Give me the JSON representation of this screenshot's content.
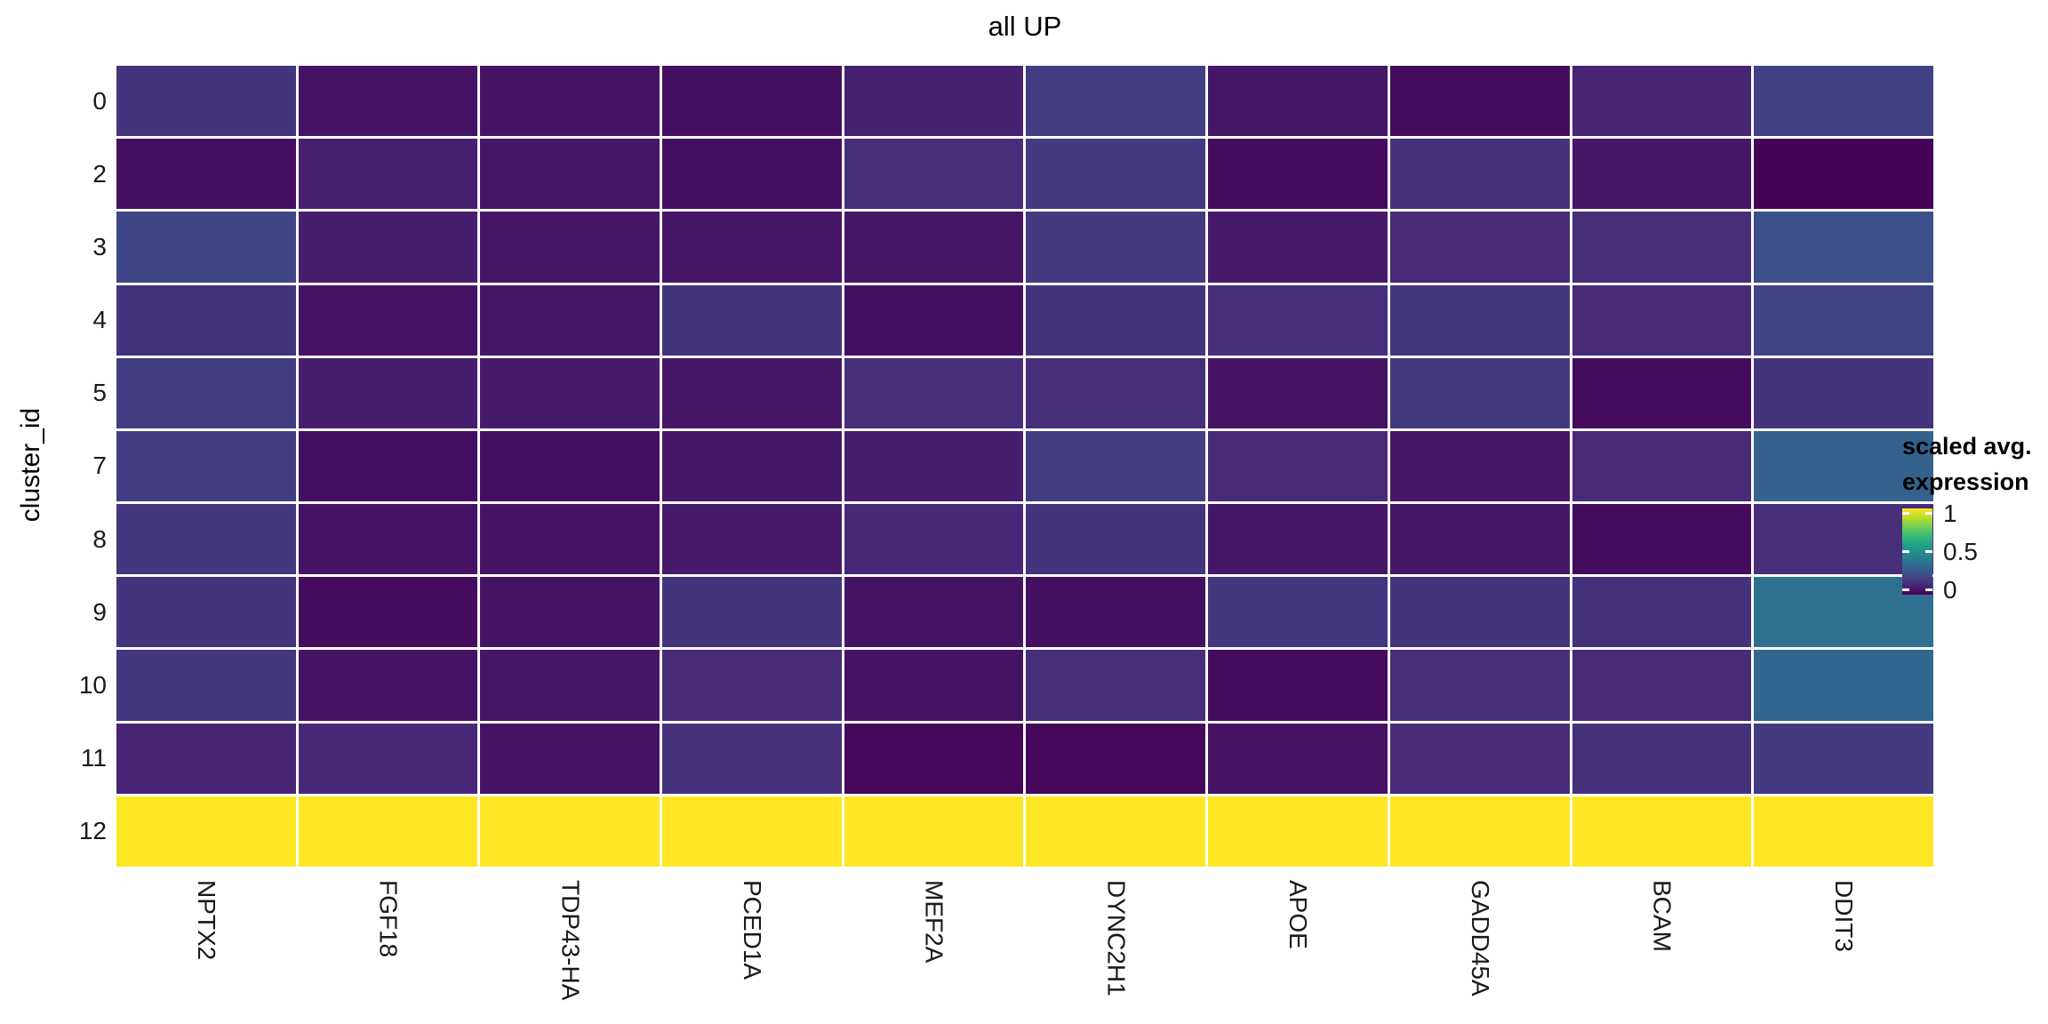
{
  "title": "all UP",
  "y_axis": {
    "label": "cluster_id",
    "ticks": [
      "0",
      "2",
      "3",
      "4",
      "5",
      "7",
      "8",
      "9",
      "10",
      "11",
      "12"
    ]
  },
  "x_axis": {
    "ticks": [
      "NPTX2",
      "FGF18",
      "TDP43-HA",
      "PCED1A",
      "MEF2A",
      "DYNC2H1",
      "APOE",
      "GADD45A",
      "BCAM",
      "DDIT3"
    ]
  },
  "legend": {
    "title_line1": "scaled avg.",
    "title_line2": "expression",
    "ticks": [
      "1",
      "0.5",
      "0"
    ],
    "tick_values": [
      1,
      0.5,
      0
    ]
  },
  "chart_data": {
    "type": "heatmap",
    "title": "all UP",
    "ylabel": "cluster_id",
    "xlabel": "",
    "categories_x": [
      "NPTX2",
      "FGF18",
      "TDP43-HA",
      "PCED1A",
      "MEF2A",
      "DYNC2H1",
      "APOE",
      "GADD45A",
      "BCAM",
      "DDIT3"
    ],
    "categories_y": [
      "0",
      "2",
      "3",
      "4",
      "5",
      "7",
      "8",
      "9",
      "10",
      "11",
      "12"
    ],
    "value_name": "scaled avg. expression",
    "value_range": [
      0,
      1
    ],
    "colormap": "viridis",
    "colormap_stops": [
      [
        0.0,
        "#440154"
      ],
      [
        0.111,
        "#482878"
      ],
      [
        0.222,
        "#3e4a89"
      ],
      [
        0.333,
        "#31688e"
      ],
      [
        0.444,
        "#26828e"
      ],
      [
        0.556,
        "#1f9e89"
      ],
      [
        0.667,
        "#35b779"
      ],
      [
        0.778,
        "#6dcd59"
      ],
      [
        0.889,
        "#b4de2c"
      ],
      [
        1.0,
        "#fde725"
      ]
    ],
    "grid": true,
    "grid_color": "#ffffff",
    "legend_position": "right",
    "values": [
      [
        0.15,
        0.05,
        0.05,
        0.04,
        0.09,
        0.18,
        0.06,
        0.03,
        0.1,
        0.19
      ],
      [
        0.04,
        0.09,
        0.06,
        0.04,
        0.13,
        0.17,
        0.03,
        0.14,
        0.06,
        0.01
      ],
      [
        0.21,
        0.08,
        0.06,
        0.06,
        0.06,
        0.17,
        0.07,
        0.12,
        0.13,
        0.24
      ],
      [
        0.15,
        0.05,
        0.06,
        0.15,
        0.04,
        0.15,
        0.13,
        0.16,
        0.12,
        0.2
      ],
      [
        0.18,
        0.08,
        0.07,
        0.06,
        0.13,
        0.13,
        0.05,
        0.17,
        0.03,
        0.15
      ],
      [
        0.18,
        0.04,
        0.04,
        0.06,
        0.08,
        0.18,
        0.12,
        0.06,
        0.12,
        0.31
      ],
      [
        0.16,
        0.05,
        0.05,
        0.07,
        0.11,
        0.15,
        0.06,
        0.06,
        0.03,
        0.13
      ],
      [
        0.15,
        0.03,
        0.05,
        0.15,
        0.05,
        0.04,
        0.16,
        0.15,
        0.14,
        0.37
      ],
      [
        0.16,
        0.05,
        0.06,
        0.12,
        0.05,
        0.13,
        0.03,
        0.13,
        0.12,
        0.33
      ],
      [
        0.1,
        0.11,
        0.05,
        0.14,
        0.02,
        0.02,
        0.05,
        0.12,
        0.14,
        0.17
      ],
      [
        1.0,
        1.0,
        1.0,
        1.0,
        1.0,
        1.0,
        1.0,
        1.0,
        1.0,
        1.0
      ]
    ]
  }
}
